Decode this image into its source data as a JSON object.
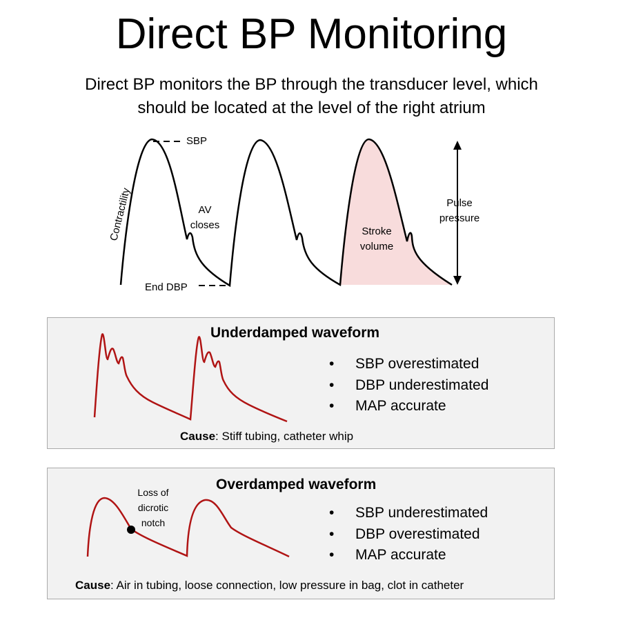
{
  "title": "Direct BP Monitoring",
  "subtitle_line1": "Direct BP monitors the BP through the transducer level, which",
  "subtitle_line2": "should be located at the level of the right atrium",
  "main_diagram": {
    "labels": {
      "sbp": "SBP",
      "contractility": "Contractility",
      "av_line1": "AV",
      "av_line2": "closes",
      "end_dbp": "End DBP",
      "stroke_line1": "Stroke",
      "stroke_line2": "volume",
      "pulse_line1": "Pulse",
      "pulse_line2": "pressure"
    },
    "fill_color": "#f8dcdc"
  },
  "underdamped": {
    "title": "Underdamped waveform",
    "bullets": [
      "SBP overestimated",
      "DBP underestimated",
      "MAP accurate"
    ],
    "cause_label": "Cause",
    "cause_text": ": Stiff tubing, catheter whip",
    "wave_color": "#b01414"
  },
  "overdamped": {
    "title": "Overdamped waveform",
    "annotation_line1": "Loss of",
    "annotation_line2": "dicrotic",
    "annotation_line3": "notch",
    "bullets": [
      "SBP underestimated",
      "DBP overestimated",
      "MAP accurate"
    ],
    "cause_label": "Cause",
    "cause_text": ": Air in tubing, loose connection, low pressure in bag, clot in catheter",
    "wave_color": "#b01414"
  },
  "bullet_glyph": "•"
}
